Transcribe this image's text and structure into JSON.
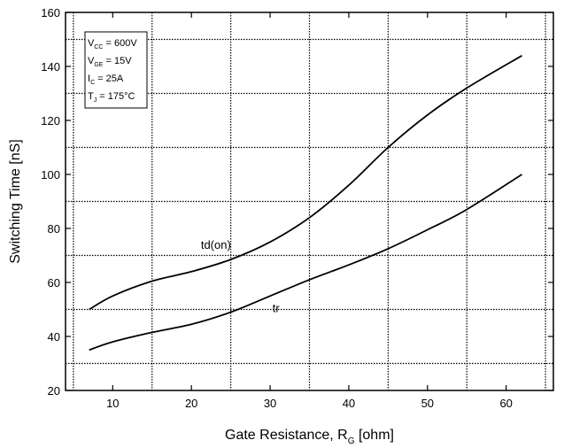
{
  "chart_data": {
    "type": "line",
    "title": "",
    "xlabel": "Gate Resistance, R",
    "xlabel_sub": "G",
    "xlabel_unit": " [ohm]",
    "ylabel": "Switching Time [nS]",
    "xlim": [
      4,
      66
    ],
    "ylim": [
      20,
      160
    ],
    "xticks": [
      10,
      20,
      30,
      40,
      50,
      60
    ],
    "yticks": [
      20,
      40,
      60,
      80,
      100,
      120,
      140,
      160
    ],
    "grid": "vertical dotted lines at 15, 25, 35, 45, 55; horizontal dotted lines at 30, 50, 70, 90, 110, 130, 150",
    "series": [
      {
        "name": "td(on)",
        "x": [
          7,
          10,
          15,
          20,
          25,
          30,
          35,
          40,
          45,
          50,
          55,
          62
        ],
        "y": [
          50,
          55,
          60.5,
          64,
          68.5,
          75,
          84,
          96,
          110,
          122,
          132,
          144
        ]
      },
      {
        "name": "tr",
        "x": [
          7,
          10,
          15,
          20,
          25,
          30,
          35,
          40,
          45,
          50,
          55,
          62
        ],
        "y": [
          35,
          38,
          41.5,
          44.5,
          49,
          55,
          61,
          66.5,
          72.5,
          79.5,
          87,
          100
        ]
      }
    ],
    "conditions": [
      {
        "main": "V",
        "sub": "CC",
        "rest": " = 600V"
      },
      {
        "main": "V",
        "sub": "GE",
        "rest": " = 15V"
      },
      {
        "main": "I",
        "sub": "C",
        "rest": " = 25A"
      },
      {
        "main": "T",
        "sub": "J",
        "rest": " = 175°C"
      }
    ]
  }
}
